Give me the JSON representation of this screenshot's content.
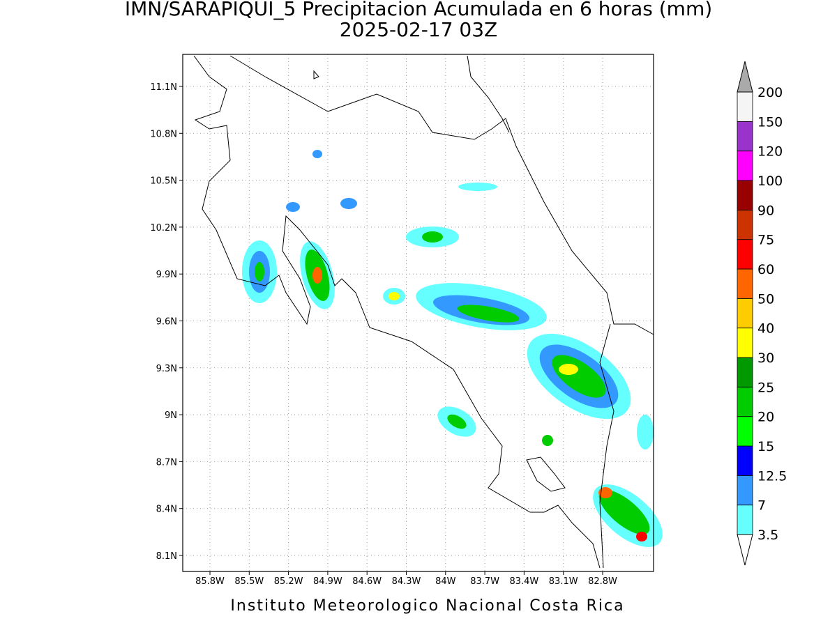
{
  "header": {
    "title": "IMN/SARAPIQUI_5 Precipitacion Acumulada en 6 horas (mm)",
    "subtitle": "2025-02-17 03Z"
  },
  "map": {
    "lon_ticks": [
      "85.8W",
      "85.5W",
      "85.2W",
      "84.9W",
      "84.6W",
      "84.3W",
      "84W",
      "83.7W",
      "83.4W",
      "83.1W",
      "82.8W"
    ],
    "lat_ticks": [
      "11.1N",
      "10.8N",
      "10.5N",
      "10.2N",
      "9.9N",
      "9.6N",
      "9.3N",
      "9N",
      "8.7N",
      "8.4N",
      "8.1N"
    ]
  },
  "colorbar": {
    "levels": [
      3.5,
      7,
      12.5,
      15,
      20,
      25,
      30,
      40,
      50,
      60,
      75,
      90,
      100,
      120,
      150,
      200
    ],
    "colors": [
      "#66ffff",
      "#3399ff",
      "#0000ff",
      "#00ff00",
      "#00cc00",
      "#009900",
      "#ffff00",
      "#ffcc00",
      "#ff6600",
      "#ff0000",
      "#cc3300",
      "#990000",
      "#ff00ff",
      "#9933cc",
      "#f5f5f5"
    ],
    "over_color": "#aaaaaa",
    "under_color": "#ffffff"
  },
  "footer": {
    "credit": "Instituto Meteorologico Nacional Costa Rica"
  }
}
